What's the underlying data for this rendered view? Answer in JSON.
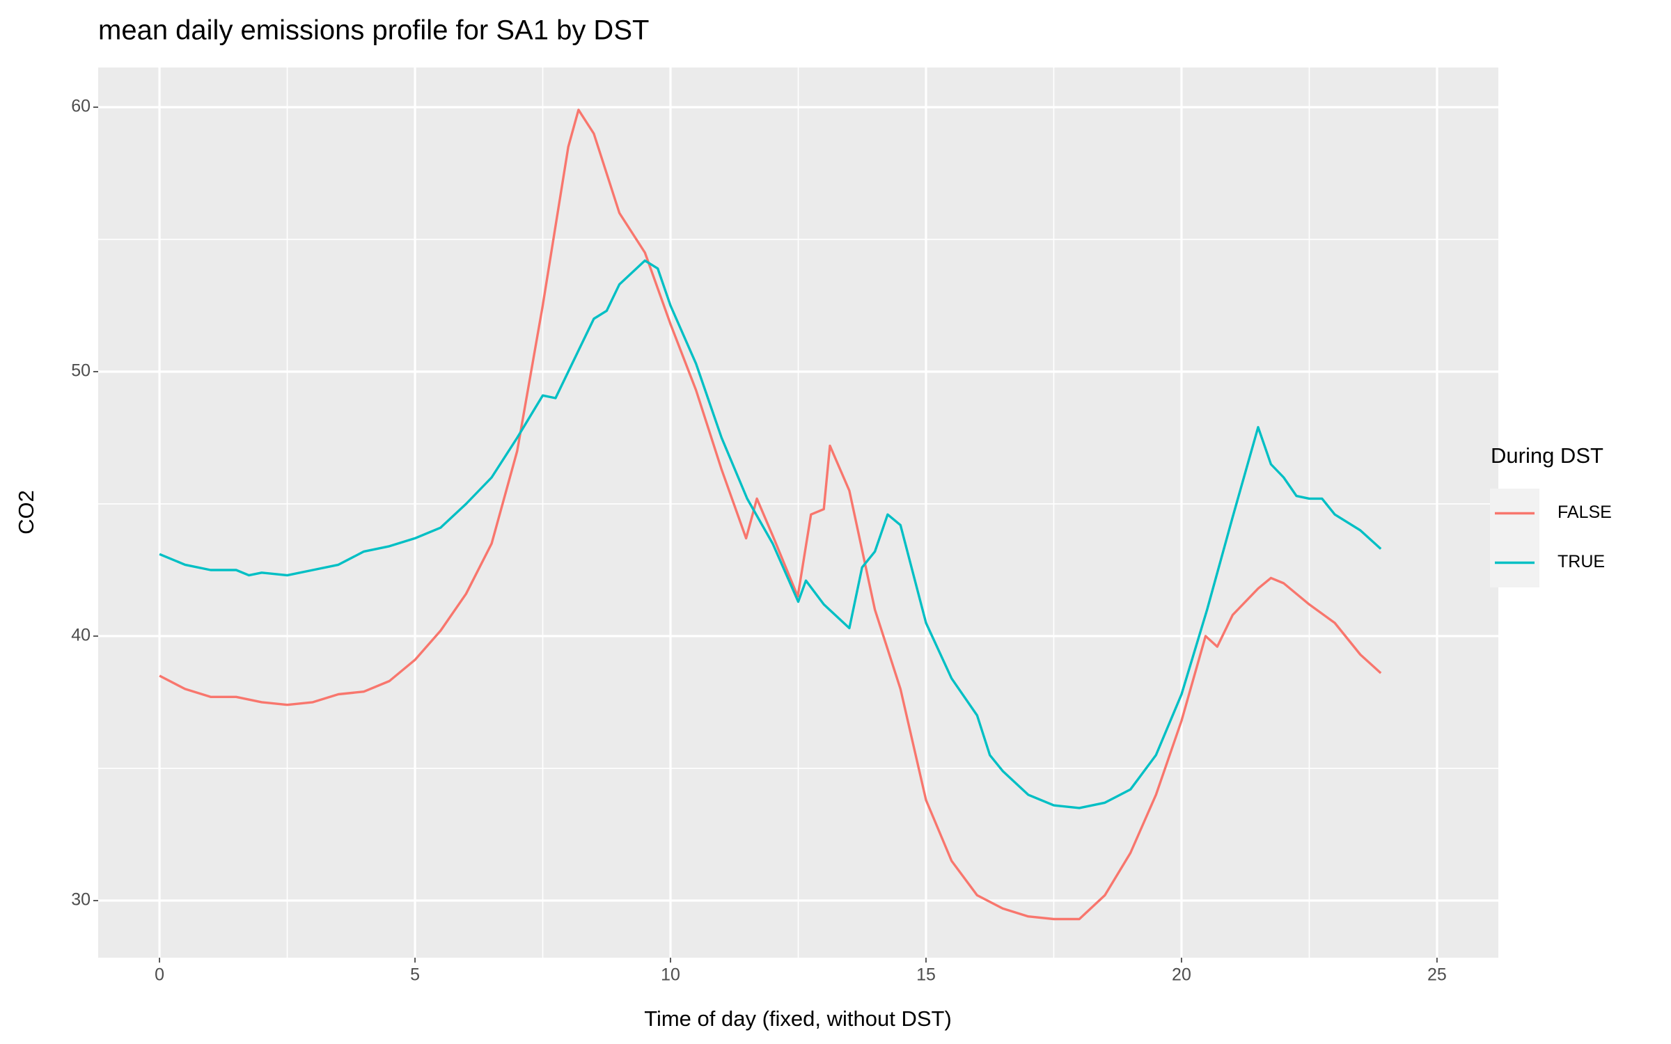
{
  "chart_data": {
    "type": "line",
    "title": "mean daily emissions profile for SA1 by DST",
    "x_label": "Time of day (fixed, without DST)",
    "y_label": "CO2",
    "legend_title": "During DST",
    "legend_position": "right",
    "grid": true,
    "xlim": [
      -1.2,
      26.2
    ],
    "xticks": [
      0,
      5,
      10,
      15,
      20,
      25
    ],
    "ylim": [
      27.84,
      61.5
    ],
    "yticks": [
      30,
      40,
      50,
      60
    ],
    "series": [
      {
        "name": "FALSE",
        "color": "#F8766D",
        "x": [
          0,
          0.5,
          1,
          1.5,
          2,
          2.5,
          3,
          3.5,
          4,
          4.5,
          5,
          5.5,
          6,
          6.5,
          7,
          7.5,
          8,
          8.2,
          8.5,
          9,
          9.5,
          10,
          10.5,
          11,
          11.48,
          11.69,
          12,
          12.49,
          12.75,
          13,
          13.12,
          13.5,
          14,
          14.5,
          15,
          15.5,
          16,
          16.5,
          17,
          17.5,
          18,
          18.5,
          19,
          19.5,
          20,
          20.47,
          20.7,
          21,
          21.5,
          21.75,
          22,
          22.5,
          23,
          23.5,
          23.9
        ],
        "values": [
          38.5,
          38.0,
          37.7,
          37.7,
          37.5,
          37.4,
          37.5,
          37.8,
          37.9,
          38.3,
          39.1,
          40.2,
          41.6,
          43.5,
          47.0,
          52.5,
          58.5,
          59.9,
          59.0,
          56.0,
          54.5,
          51.8,
          49.3,
          46.3,
          43.7,
          45.2,
          43.8,
          41.5,
          44.6,
          44.8,
          47.2,
          45.5,
          41.0,
          38.0,
          33.8,
          31.5,
          30.2,
          29.7,
          29.4,
          29.3,
          29.3,
          30.2,
          31.8,
          34.0,
          36.8,
          40.0,
          39.6,
          40.8,
          41.8,
          42.2,
          42.0,
          41.2,
          40.5,
          39.3,
          38.6
        ]
      },
      {
        "name": "TRUE",
        "color": "#00BFC4",
        "x": [
          0,
          0.5,
          1,
          1.5,
          1.75,
          2,
          2.5,
          3,
          3.5,
          4,
          4.5,
          5,
          5.5,
          6,
          6.5,
          7,
          7.5,
          7.75,
          8,
          8.5,
          8.75,
          9,
          9.5,
          9.75,
          10,
          10.5,
          11,
          11.5,
          12,
          12.5,
          12.65,
          13,
          13.5,
          13.75,
          14,
          14.25,
          14.5,
          15,
          15.5,
          16,
          16.25,
          16.5,
          17,
          17.5,
          18,
          18.5,
          19,
          19.5,
          20,
          20.5,
          21,
          21.5,
          21.75,
          22,
          22.25,
          22.5,
          22.75,
          23,
          23.5,
          23.9
        ],
        "values": [
          43.1,
          42.7,
          42.5,
          42.5,
          42.3,
          42.4,
          42.3,
          42.5,
          42.7,
          43.2,
          43.4,
          43.7,
          44.1,
          45.0,
          46.0,
          47.5,
          49.1,
          49.0,
          50.0,
          52.0,
          52.3,
          53.3,
          54.2,
          53.9,
          52.5,
          50.3,
          47.5,
          45.2,
          43.5,
          41.3,
          42.1,
          41.2,
          40.3,
          42.6,
          43.2,
          44.6,
          44.2,
          40.5,
          38.4,
          37.0,
          35.5,
          34.9,
          34.0,
          33.6,
          33.5,
          33.7,
          34.2,
          35.5,
          37.8,
          41.0,
          44.5,
          47.9,
          46.5,
          46.0,
          45.3,
          45.2,
          45.2,
          44.6,
          44.0,
          43.3
        ]
      }
    ]
  }
}
